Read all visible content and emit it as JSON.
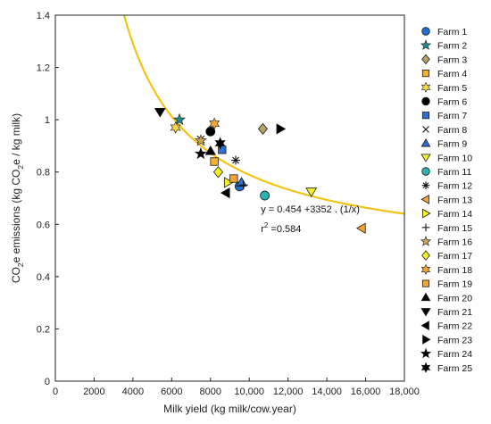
{
  "chart_data": {
    "type": "scatter",
    "xlabel": "Milk yield (kg milk/cow.year)",
    "ylabel_parts": [
      "CO",
      "2",
      "e emissions (kg CO",
      "2",
      "e / kg milk)"
    ],
    "xlim": [
      0,
      18000
    ],
    "ylim": [
      0,
      1.4
    ],
    "x_ticks": [
      0,
      2000,
      4000,
      6000,
      8000,
      10000,
      12000,
      14000,
      16000,
      18000
    ],
    "x_tick_labels": [
      "0",
      "2000",
      "4000",
      "6000",
      "8000",
      "10,000",
      "12,000",
      "14,000",
      "16,000",
      "18,000"
    ],
    "y_ticks": [
      0,
      0.2,
      0.4,
      0.6,
      0.8,
      1.0,
      1.2,
      1.4
    ],
    "y_tick_labels": [
      "0",
      "0.2",
      "0.4",
      "0.6",
      "0.8",
      "1",
      "1.2",
      "1.4"
    ],
    "grid": false,
    "legend_position": "right",
    "fit": {
      "a": 0.454,
      "b": 3352,
      "color": "#F2C417"
    },
    "annotation": {
      "equation": "y = 0.454 +3352 . (1/x)",
      "r2_prefix": "r",
      "r2_sup": "2",
      "r2_value": " =0.584",
      "x": 10600,
      "y": 0.645
    },
    "series": [
      {
        "name": "Farm 1",
        "marker": "circle",
        "color": "#1F6FD1",
        "x": 9500,
        "y": 0.745
      },
      {
        "name": "Farm 2",
        "marker": "star5",
        "color": "#1E8C8C",
        "x": 6400,
        "y": 1.0
      },
      {
        "name": "Farm 3",
        "marker": "diamond",
        "color": "#B5A267",
        "x": 10700,
        "y": 0.965
      },
      {
        "name": "Farm 4",
        "marker": "square",
        "color": "#F2B233",
        "x": 8200,
        "y": 0.84
      },
      {
        "name": "Farm 5",
        "marker": "star6",
        "color": "#F7D94A",
        "x": 6200,
        "y": 0.97
      },
      {
        "name": "Farm 6",
        "marker": "circle",
        "color": "#000000",
        "x": 8000,
        "y": 0.955
      },
      {
        "name": "Farm 7",
        "marker": "square",
        "color": "#2E6FD6",
        "x": 8600,
        "y": 0.885
      },
      {
        "name": "Farm 8",
        "marker": "x",
        "color": "#111111",
        "x": 7500,
        "y": 0.925
      },
      {
        "name": "Farm 9",
        "marker": "triangle-up",
        "color": "#2E6FD6",
        "x": 9600,
        "y": 0.76
      },
      {
        "name": "Farm 10",
        "marker": "triangle-down",
        "color": "#F5F028",
        "x": 13200,
        "y": 0.725
      },
      {
        "name": "Farm 11",
        "marker": "circle",
        "color": "#2BB3B3",
        "x": 10800,
        "y": 0.71
      },
      {
        "name": "Farm 12",
        "marker": "asterisk",
        "color": "#111111",
        "x": 9300,
        "y": 0.845
      },
      {
        "name": "Farm 13",
        "marker": "triangle-left",
        "color": "#F2A33A",
        "x": 15800,
        "y": 0.585
      },
      {
        "name": "Farm 14",
        "marker": "triangle-right",
        "color": "#F5F028",
        "x": 8900,
        "y": 0.76
      },
      {
        "name": "Farm 15",
        "marker": "plus",
        "color": "#111111",
        "x": 9700,
        "y": 0.75
      },
      {
        "name": "Farm 16",
        "marker": "star5",
        "color": "#C9A455",
        "x": 7500,
        "y": 0.92
      },
      {
        "name": "Farm 17",
        "marker": "diamond",
        "color": "#F5F028",
        "x": 8400,
        "y": 0.8
      },
      {
        "name": "Farm 18",
        "marker": "star6",
        "color": "#F2A33A",
        "x": 8200,
        "y": 0.985
      },
      {
        "name": "Farm 19",
        "marker": "square",
        "color": "#F2A33A",
        "x": 9200,
        "y": 0.775
      },
      {
        "name": "Farm 20",
        "marker": "triangle-up",
        "color": "#000000",
        "x": 8000,
        "y": 0.88
      },
      {
        "name": "Farm 21",
        "marker": "triangle-down",
        "color": "#000000",
        "x": 5400,
        "y": 1.03
      },
      {
        "name": "Farm 22",
        "marker": "triangle-left",
        "color": "#000000",
        "x": 8800,
        "y": 0.72
      },
      {
        "name": "Farm 23",
        "marker": "triangle-right",
        "color": "#000000",
        "x": 11600,
        "y": 0.965
      },
      {
        "name": "Farm 24",
        "marker": "star5",
        "color": "#000000",
        "x": 7500,
        "y": 0.87
      },
      {
        "name": "Farm 25",
        "marker": "star6",
        "color": "#000000",
        "x": 8500,
        "y": 0.91
      }
    ]
  }
}
